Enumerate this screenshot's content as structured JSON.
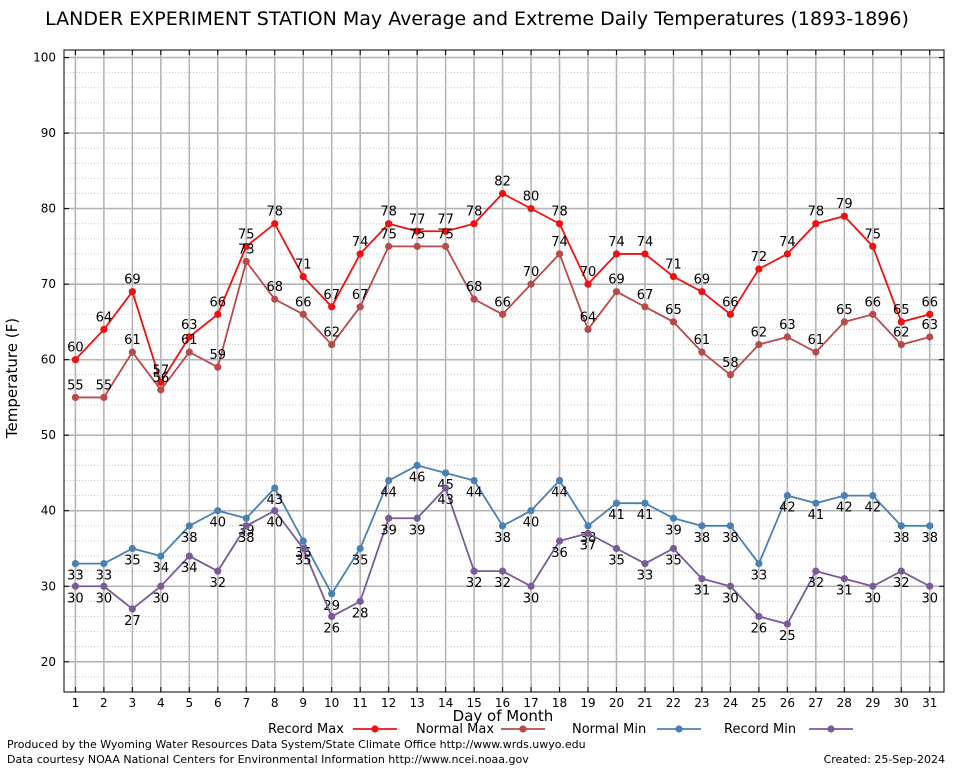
{
  "chart_data": {
    "type": "line",
    "title": "LANDER EXPERIMENT STATION May Average and Extreme Daily Temperatures (1893-1896)",
    "xlabel": "Day of Month",
    "ylabel": "Temperature (F)",
    "xlim": [
      0.6,
      31.5
    ],
    "ylim": [
      16,
      101
    ],
    "y_ticks": [
      20,
      30,
      40,
      50,
      60,
      70,
      80,
      90,
      100
    ],
    "y_minor_step": 2,
    "grid": true,
    "legend_position": "bottom",
    "x": [
      1,
      2,
      3,
      4,
      5,
      6,
      7,
      8,
      9,
      10,
      11,
      12,
      13,
      14,
      15,
      16,
      17,
      18,
      19,
      20,
      21,
      22,
      23,
      24,
      25,
      26,
      27,
      28,
      29,
      30,
      31
    ],
    "series": [
      {
        "name": "Record Max",
        "color": "#ee1111",
        "values": [
          60,
          64,
          69,
          57,
          63,
          66,
          75,
          78,
          71,
          67,
          74,
          78,
          77,
          77,
          78,
          82,
          80,
          78,
          70,
          74,
          74,
          71,
          69,
          66,
          72,
          74,
          78,
          79,
          75,
          65,
          66
        ]
      },
      {
        "name": "Normal Max",
        "color": "#b84a4a",
        "values": [
          55,
          55,
          61,
          56,
          61,
          59,
          73,
          68,
          66,
          62,
          67,
          75,
          75,
          75,
          68,
          66,
          70,
          74,
          64,
          69,
          67,
          65,
          61,
          58,
          62,
          63,
          61,
          65,
          66,
          62,
          63
        ]
      },
      {
        "name": "Normal Min",
        "color": "#4a80b4",
        "values": [
          33,
          33,
          35,
          34,
          38,
          40,
          39,
          43,
          36,
          29,
          35,
          44,
          46,
          45,
          44,
          38,
          40,
          44,
          38,
          41,
          41,
          39,
          38,
          38,
          33,
          42,
          41,
          42,
          42,
          38,
          38
        ]
      },
      {
        "name": "Record Min",
        "color": "#7b5a98",
        "values": [
          30,
          30,
          27,
          30,
          34,
          32,
          38,
          40,
          35,
          26,
          28,
          39,
          39,
          43,
          32,
          32,
          30,
          36,
          37,
          35,
          33,
          35,
          31,
          30,
          26,
          25,
          32,
          31,
          30,
          32,
          30
        ]
      }
    ]
  },
  "footer": {
    "produced_by": "Produced by the Wyoming Water Resources Data System/State Climate Office http://www.wrds.uwyo.edu",
    "courtesy": "Data courtesy NOAA National Centers for Environmental Information http://www.ncei.noaa.gov",
    "created": "Created:  25-Sep-2024"
  }
}
